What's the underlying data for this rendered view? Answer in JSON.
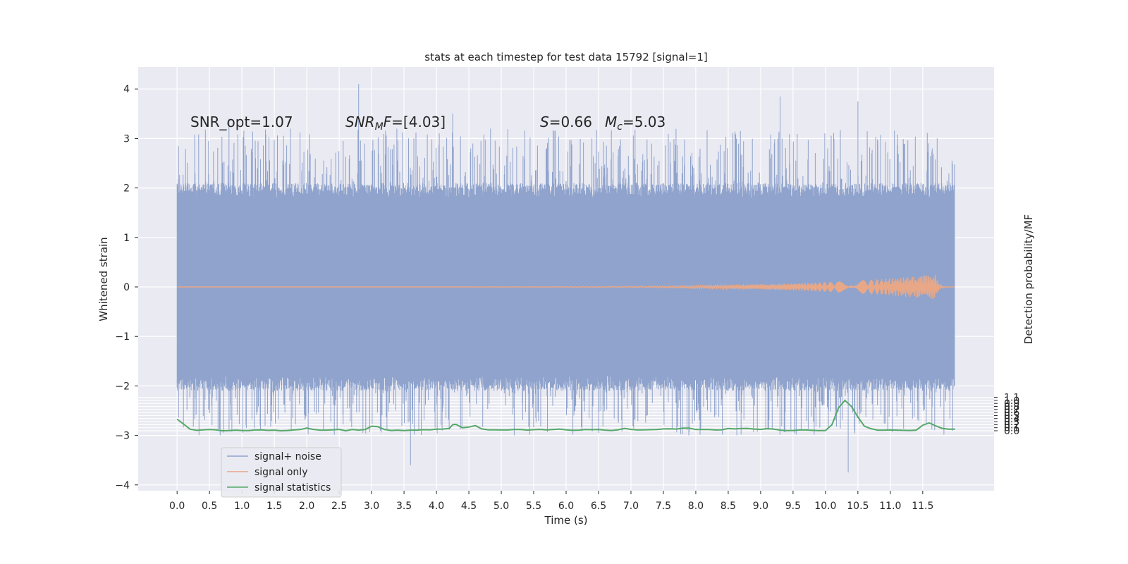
{
  "chart_data": {
    "type": "line",
    "title": "stats at each timestep for test data 15792 [signal=1]",
    "xlabel": "Time (s)",
    "ylabel": "Whitened strain",
    "ylabel_right": "Detection probability/MF",
    "xlim": [
      -0.6,
      12.6
    ],
    "ylim": [
      -4.2,
      4.5
    ],
    "ylim_right": [
      -0.2,
      1.2
    ],
    "x_ticks": [
      "0.0",
      "0.5",
      "1.0",
      "1.5",
      "2.0",
      "2.5",
      "3.0",
      "3.5",
      "4.0",
      "4.5",
      "5.0",
      "5.5",
      "6.0",
      "6.5",
      "7.0",
      "7.5",
      "8.0",
      "8.5",
      "9.0",
      "9.5",
      "10.0",
      "10.5",
      "11.0",
      "11.5"
    ],
    "y_ticks": [
      "4",
      "3",
      "2",
      "1",
      "0",
      "−1",
      "−2",
      "−3",
      "−4"
    ],
    "y_ticks_right": [
      "1.1",
      "1.0",
      "0.9",
      "0.8",
      "0.7",
      "0.6",
      "0.5",
      "0.4",
      "0.3",
      "0.2",
      "0.1",
      "0.0"
    ],
    "grid": true,
    "legend_placement": "lower-left",
    "annotations": {
      "snr_opt": "SNR_opt=1.07",
      "snr_mf": "SNRMF=[4.03]",
      "s_val": "S=0.66",
      "mc_val": "Mc=5.03"
    },
    "series": [
      {
        "name": "signal+ noise",
        "color": "#8fa3cc",
        "axis": "left",
        "x_range": [
          0.0,
          11.99
        ],
        "amplitude_band": [
          -2.0,
          2.0
        ],
        "peaks": [
          [
            0.8,
            3.4
          ],
          [
            2.8,
            4.1
          ],
          [
            4.25,
            3.5
          ],
          [
            9.3,
            3.85
          ],
          [
            10.35,
            -3.75
          ],
          [
            10.5,
            3.75
          ],
          [
            3.6,
            -3.6
          ]
        ]
      },
      {
        "name": "signal only",
        "color": "#dd8452",
        "axis": "left",
        "x_range": [
          0.0,
          11.99
        ],
        "peak_amplitude": 0.25,
        "peak_time": 11.7
      },
      {
        "name": "signal statistics",
        "color": "#55a868",
        "axis": "right",
        "x": [
          0.0,
          0.1,
          0.2,
          0.3,
          0.4,
          0.5,
          0.6,
          0.7,
          0.8,
          0.9,
          1.0,
          1.1,
          1.2,
          1.3,
          1.4,
          1.5,
          1.6,
          1.7,
          1.8,
          1.9,
          2.0,
          2.1,
          2.2,
          2.3,
          2.4,
          2.5,
          2.6,
          2.7,
          2.8,
          2.9,
          3.0,
          3.1,
          3.2,
          3.3,
          3.4,
          3.5,
          3.6,
          3.7,
          3.8,
          3.9,
          4.0,
          4.1,
          4.2,
          4.25,
          4.3,
          4.4,
          4.5,
          4.6,
          4.7,
          4.8,
          4.9,
          5.0,
          5.1,
          5.2,
          5.3,
          5.4,
          5.5,
          5.6,
          5.7,
          5.8,
          5.9,
          6.0,
          6.1,
          6.2,
          6.3,
          6.4,
          6.5,
          6.6,
          6.7,
          6.8,
          6.9,
          7.0,
          7.1,
          7.2,
          7.3,
          7.4,
          7.5,
          7.6,
          7.7,
          7.8,
          7.9,
          8.0,
          8.1,
          8.2,
          8.3,
          8.4,
          8.5,
          8.6,
          8.7,
          8.8,
          8.9,
          9.0,
          9.1,
          9.2,
          9.3,
          9.4,
          9.5,
          9.6,
          9.7,
          9.8,
          9.9,
          10.0,
          10.1,
          10.2,
          10.3,
          10.4,
          10.5,
          10.6,
          10.7,
          10.8,
          10.9,
          11.0,
          11.1,
          11.2,
          11.3,
          11.4,
          11.5,
          11.6,
          11.7,
          11.8,
          11.9,
          12.0
        ],
        "values": [
          0.38,
          0.22,
          0.05,
          0.015,
          0.03,
          0.04,
          0.03,
          0.0,
          0.005,
          0.02,
          0.01,
          0.005,
          0.025,
          0.03,
          0.015,
          0.02,
          0.0,
          0.01,
          0.025,
          0.04,
          0.09,
          0.045,
          0.02,
          0.02,
          0.03,
          0.045,
          0.0,
          0.04,
          0.02,
          0.04,
          0.15,
          0.13,
          0.04,
          0.01,
          0.02,
          0.005,
          0.02,
          0.02,
          0.035,
          0.03,
          0.05,
          0.055,
          0.08,
          0.2,
          0.21,
          0.1,
          0.12,
          0.17,
          0.06,
          0.03,
          0.03,
          0.025,
          0.025,
          0.04,
          0.04,
          0.02,
          0.035,
          0.045,
          0.025,
          0.04,
          0.055,
          0.03,
          0.015,
          0.02,
          0.04,
          0.035,
          0.04,
          0.02,
          0.01,
          0.03,
          0.08,
          0.045,
          0.025,
          0.03,
          0.035,
          0.04,
          0.06,
          0.065,
          0.055,
          0.085,
          0.085,
          0.04,
          0.04,
          0.04,
          0.025,
          0.03,
          0.075,
          0.06,
          0.075,
          0.08,
          0.055,
          0.045,
          0.07,
          0.055,
          0.02,
          0.005,
          0.01,
          0.025,
          0.025,
          0.015,
          0.005,
          0.01,
          0.2,
          0.75,
          1.0,
          0.8,
          0.45,
          0.15,
          0.07,
          0.02,
          0.02,
          0.025,
          0.02,
          0.015,
          0.01,
          0.02,
          0.18,
          0.26,
          0.16,
          0.08,
          0.05,
          0.05
        ]
      }
    ]
  }
}
